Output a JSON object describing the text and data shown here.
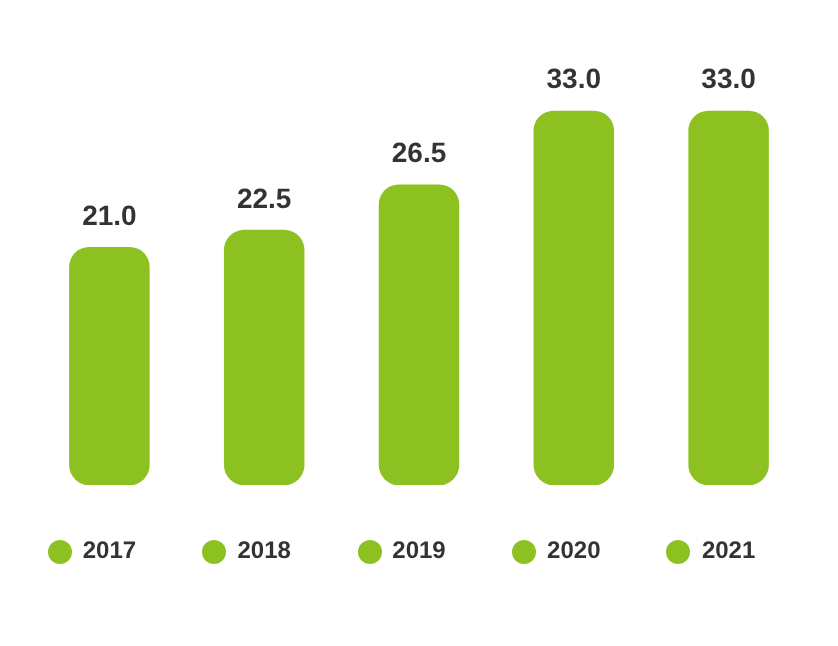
{
  "chart_data": {
    "type": "bar",
    "categories": [
      "2017",
      "2018",
      "2019",
      "2020",
      "2021"
    ],
    "values": [
      21.0,
      22.5,
      26.5,
      33.0,
      33.0
    ],
    "colors": [
      "#8cc121",
      "#8cc121",
      "#8cc121",
      "#8cc121",
      "#8cc121"
    ],
    "value_labels": [
      "21.0",
      "22.5",
      "26.5",
      "33.0",
      "33.0"
    ],
    "tick_labels": "x"
  }
}
